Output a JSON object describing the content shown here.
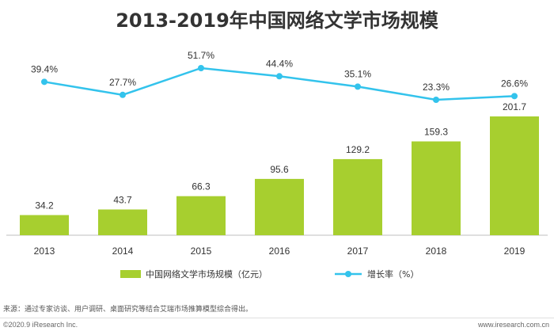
{
  "chart_data": {
    "type": "bar",
    "title": "2013-2019年中国网络文学市场规模",
    "categories": [
      "2013",
      "2014",
      "2015",
      "2016",
      "2017",
      "2018",
      "2019"
    ],
    "series": [
      {
        "name": "中国网络文学市场规模（亿元）",
        "kind": "bar",
        "values": [
          34.2,
          43.7,
          66.3,
          95.6,
          129.2,
          159.3,
          201.7
        ],
        "labels": [
          "34.2",
          "43.7",
          "66.3",
          "95.6",
          "129.2",
          "159.3",
          "201.7"
        ]
      },
      {
        "name": "增长率（%）",
        "kind": "line",
        "values": [
          39.4,
          27.7,
          51.7,
          44.4,
          35.1,
          23.3,
          26.6
        ],
        "labels": [
          "39.4%",
          "27.7%",
          "51.7%",
          "44.4%",
          "35.1%",
          "23.3%",
          "26.6%"
        ]
      }
    ],
    "bar_ylim": [
      0,
      201.7
    ],
    "line_ylim": [
      23.3,
      51.7
    ],
    "legend_position": "bottom-center"
  },
  "colors": {
    "bar": "#a7cf2f",
    "line": "#33c3ec",
    "text": "#333333"
  },
  "footer": {
    "source": "来源：通过专家访谈、用户调研、桌面研究等结合艾瑞市场推算模型综合得出。",
    "copyright": "©2020.9 iResearch Inc.",
    "website": "www.iresearch.com.cn"
  }
}
